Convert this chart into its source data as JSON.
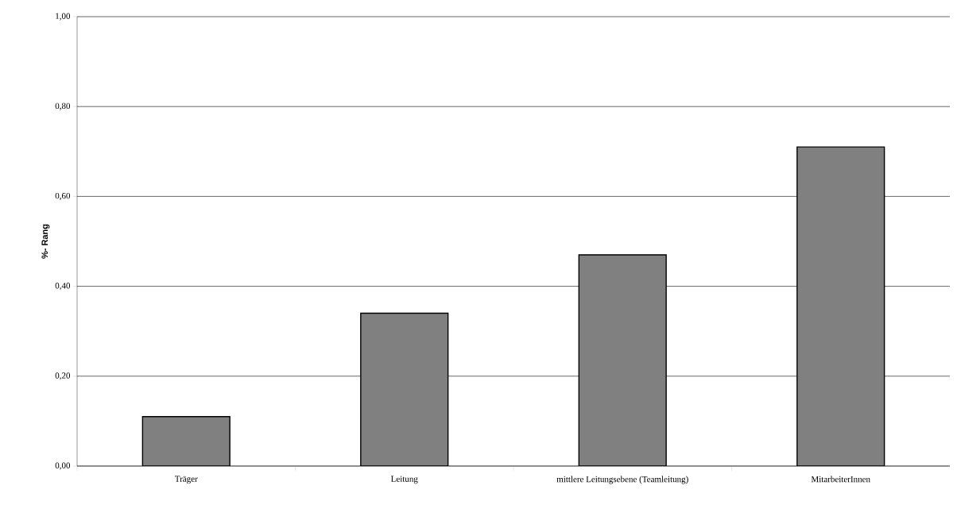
{
  "chart_data": {
    "type": "bar",
    "ylabel": "%- Rang",
    "categories": [
      "Träger",
      "Leitung",
      "mittlere Leitungsebene (Teamleitung)",
      "MitarbeiterInnen"
    ],
    "values": [
      0.11,
      0.34,
      0.47,
      0.71
    ],
    "color": "#808080",
    "ylim": [
      0,
      1
    ],
    "yticks": [
      {
        "value": 0,
        "label": "0,00"
      },
      {
        "value": 0.2,
        "label": "0,20"
      },
      {
        "value": 0.4,
        "label": "0,40"
      },
      {
        "value": 0.6,
        "label": "0,60"
      },
      {
        "value": 0.8,
        "label": "0,80"
      },
      {
        "value": 1,
        "label": "1,00"
      }
    ],
    "grid": "y"
  }
}
